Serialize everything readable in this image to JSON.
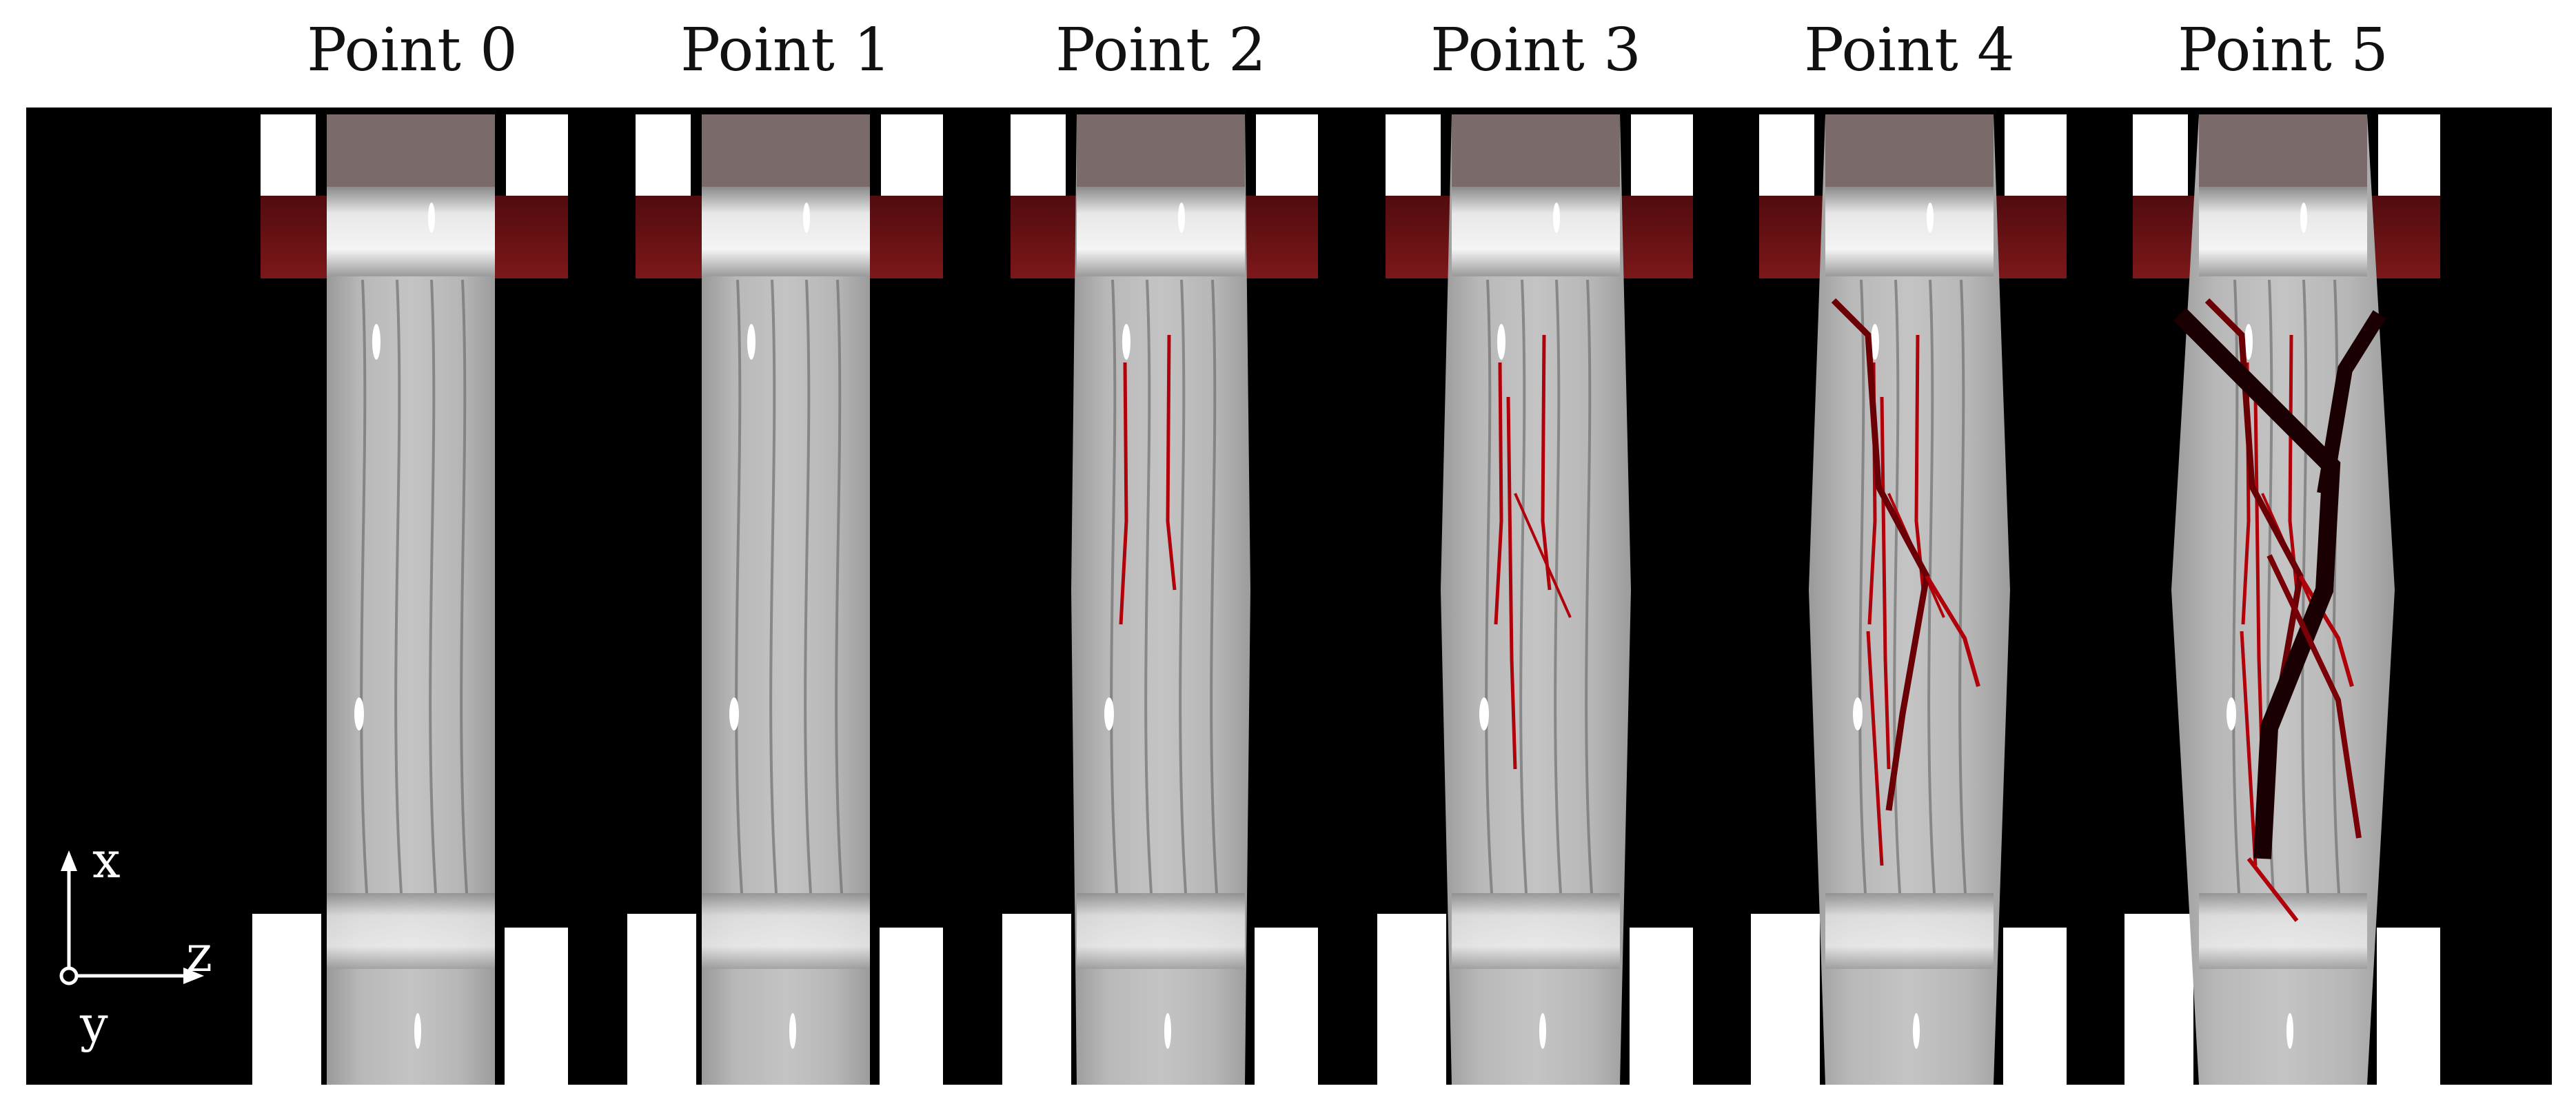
{
  "figure": {
    "labels": [
      "Point 0",
      "Point 1",
      "Point 2",
      "Point 3",
      "Point 4",
      "Point 5"
    ],
    "axes": {
      "vertical": "x",
      "horizontal": "z",
      "out_of_plane": "y"
    },
    "colors": {
      "background": "#000000",
      "specimen_light": "#c8c8c8",
      "specimen_dark": "#6f6f6f",
      "crack": "#b0000a",
      "grip": "#ffffff"
    },
    "specimen_count": 6,
    "crack_severity": [
      0,
      0,
      1,
      2,
      3,
      5
    ]
  }
}
